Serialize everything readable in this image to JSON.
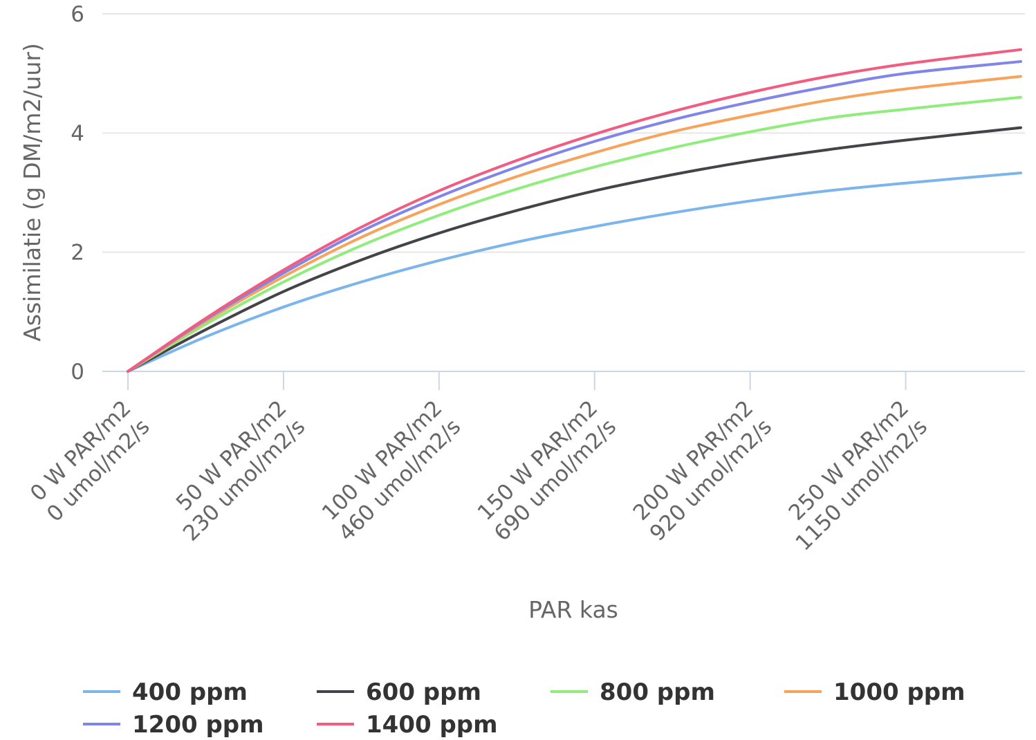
{
  "chart_data": {
    "type": "line",
    "title": "",
    "xlabel": "PAR kas",
    "ylabel": "Assimilatie (g DM/m2/uur)",
    "xlim": [
      0,
      287
    ],
    "ylim": [
      0,
      6
    ],
    "y_ticks": [
      0,
      2,
      4,
      6
    ],
    "x_ticks": [
      {
        "value": 0,
        "line1": "0 W PAR/m2",
        "line2": "0 umol/m2/s"
      },
      {
        "value": 50,
        "line1": "50 W PAR/m2",
        "line2": "230 umol/m2/s"
      },
      {
        "value": 100,
        "line1": "100 W PAR/m2",
        "line2": "460 umol/m2/s"
      },
      {
        "value": 150,
        "line1": "150 W PAR/m2",
        "line2": "690 umol/m2/s"
      },
      {
        "value": 200,
        "line1": "200 W PAR/m2",
        "line2": "920 umol/m2/s"
      },
      {
        "value": 250,
        "line1": "250 W PAR/m2",
        "line2": "1150 umol/m2/s"
      }
    ],
    "grid": true,
    "legend_position": "bottom",
    "x": [
      0,
      25,
      50,
      75,
      100,
      125,
      150,
      175,
      200,
      225,
      250,
      287
    ],
    "series": [
      {
        "name": "400 ppm",
        "color": "#7cb5ec",
        "values": [
          0,
          0.58,
          1.08,
          1.5,
          1.86,
          2.17,
          2.43,
          2.66,
          2.86,
          3.03,
          3.16,
          3.33
        ]
      },
      {
        "name": "600 ppm",
        "color": "#434348",
        "values": [
          0,
          0.7,
          1.34,
          1.87,
          2.32,
          2.7,
          3.03,
          3.3,
          3.53,
          3.72,
          3.88,
          4.09
        ]
      },
      {
        "name": "800 ppm",
        "color": "#90ed7d",
        "values": [
          0,
          0.79,
          1.5,
          2.11,
          2.62,
          3.06,
          3.43,
          3.75,
          4.02,
          4.25,
          4.4,
          4.6
        ]
      },
      {
        "name": "1000 ppm",
        "color": "#f7a35c",
        "values": [
          0,
          0.84,
          1.59,
          2.25,
          2.8,
          3.27,
          3.67,
          4.02,
          4.3,
          4.55,
          4.74,
          4.95
        ]
      },
      {
        "name": "1200 ppm",
        "color": "#8085e9",
        "values": [
          0,
          0.87,
          1.65,
          2.35,
          2.93,
          3.43,
          3.86,
          4.22,
          4.52,
          4.78,
          5.0,
          5.2
        ]
      },
      {
        "name": "1400 ppm",
        "color": "#f15c80",
        "values": [
          0,
          0.89,
          1.7,
          2.42,
          3.03,
          3.54,
          3.98,
          4.36,
          4.68,
          4.95,
          5.16,
          5.4
        ]
      }
    ]
  }
}
